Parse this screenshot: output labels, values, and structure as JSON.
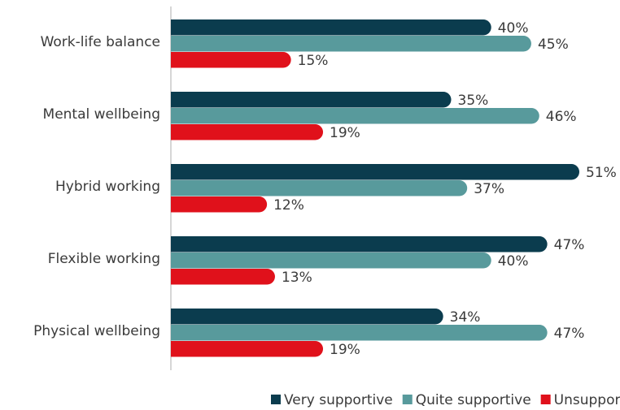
{
  "chart_data": {
    "type": "bar",
    "orientation": "horizontal",
    "categories": [
      "Work-life balance",
      "Mental wellbeing",
      "Hybrid working",
      "Flexible working",
      "Physical wellbeing"
    ],
    "series": [
      {
        "name": "Very supportive",
        "color": "#0b3c4e",
        "values": [
          40,
          35,
          51,
          47,
          34
        ],
        "value_labels": [
          "40%",
          "35%",
          "51%",
          "47%",
          "34%"
        ]
      },
      {
        "name": "Quite supportive",
        "color": "#589a9c",
        "values": [
          45,
          46,
          37,
          40,
          47
        ],
        "value_labels": [
          "45%",
          "46%",
          "37%",
          "40%",
          "47%"
        ]
      },
      {
        "name": "Unsupportive",
        "color": "#e0111b",
        "values": [
          15,
          19,
          12,
          13,
          19
        ],
        "value_labels": [
          "15%",
          "19%",
          "12%",
          "13%",
          "19%"
        ]
      }
    ],
    "legend": "bottom"
  }
}
